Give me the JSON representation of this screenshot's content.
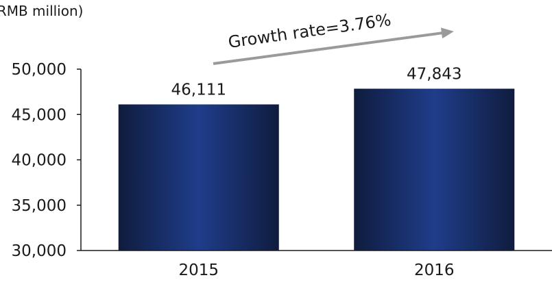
{
  "chart_data": {
    "type": "bar",
    "unit_label": "(RMB million)",
    "categories": [
      "2015",
      "2016"
    ],
    "values": [
      46111,
      47843
    ],
    "data_labels": [
      "46,111",
      "47,843"
    ],
    "yticks": [
      "30,000",
      "35,000",
      "40,000",
      "45,000",
      "50,000"
    ],
    "ytick_values": [
      30000,
      35000,
      40000,
      45000,
      50000
    ],
    "ylim": [
      30000,
      50000
    ],
    "annotation": "Growth rate=3.76%",
    "grid": false,
    "legend": "none",
    "colors": {
      "bar_edge": "#0f1c3e",
      "bar_center": "#1f3d8a",
      "arrow": "#9a9a9a",
      "axis": "#1a1a1a"
    }
  }
}
